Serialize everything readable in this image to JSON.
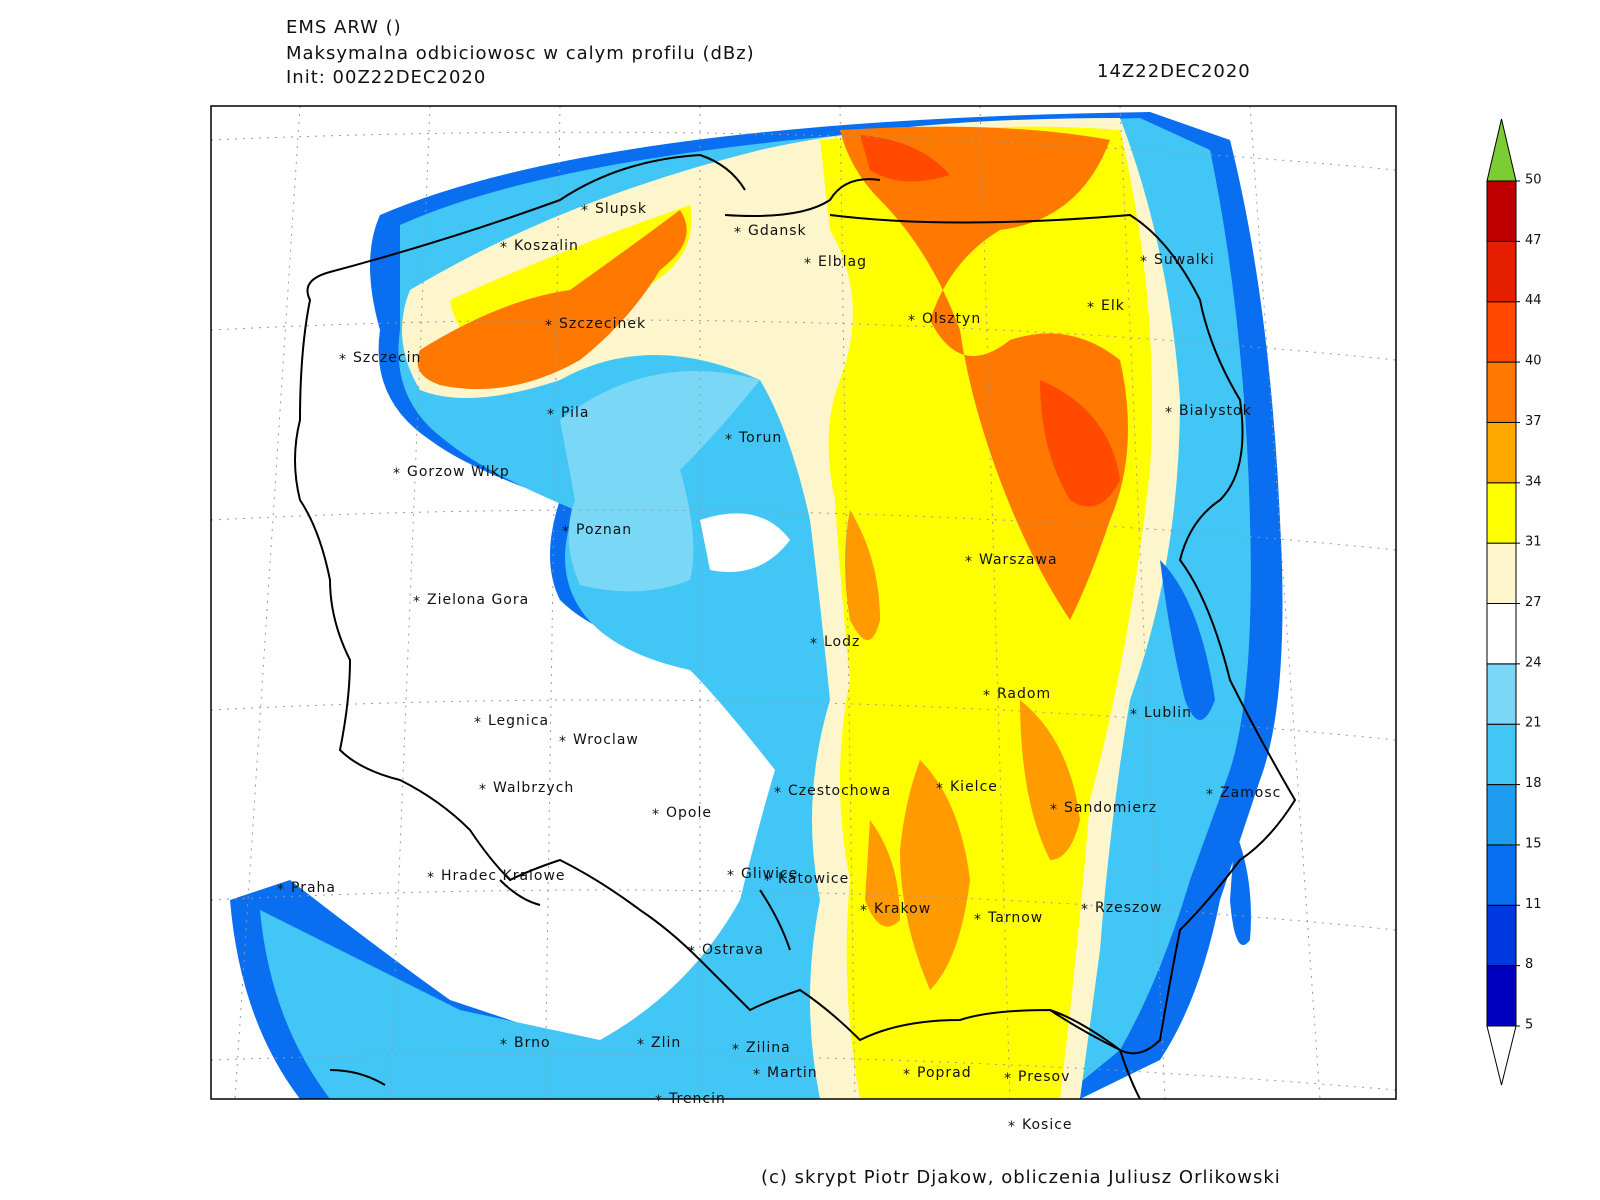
{
  "header": {
    "model": "EMS ARW ()",
    "variable": "Maksymalna odbiciowosc w calym profilu (dBz)",
    "init": "Init: 00Z22DEC2020",
    "valid_time": "14Z22DEC2020"
  },
  "cities": [
    "Slupsk",
    "Koszalin",
    "Gdansk",
    "Elblag",
    "Suwalki",
    "Elk",
    "Olsztyn",
    "Szczecinek",
    "Szczecin",
    "Bialystok",
    "Pila",
    "Torun",
    "Gorzow Wlkp",
    "Poznan",
    "Warszawa",
    "Zielona Gora",
    "Lodz",
    "Radom",
    "Lublin",
    "Legnica",
    "Wroclaw",
    "Walbrzych",
    "Czestochowa",
    "Kielce",
    "Zamosc",
    "Opole",
    "Sandomierz",
    "Praha",
    "Hradec Kralowe",
    "Gliwice",
    "Katowice",
    "Krakow",
    "Tarnow",
    "Rzeszow",
    "Ostrava",
    "Brno",
    "Zlin",
    "Zilina",
    "Martin",
    "Poprad",
    "Presov",
    "Trencin",
    "Kosice"
  ],
  "colorbar": {
    "levels": [
      5,
      8,
      11,
      15,
      18,
      21,
      24,
      27,
      31,
      34,
      37,
      40,
      44,
      47,
      50
    ],
    "colors": [
      "#0000c0",
      "#0038e0",
      "#0a6ef0",
      "#1e9cf0",
      "#42c6f6",
      "#7ad8f6",
      "#ffffff",
      "#fdf6cc",
      "#ffff00",
      "#ffa800",
      "#ff7800",
      "#ff4a00",
      "#e61e00",
      "#c00000"
    ],
    "over_color": "#7ccc34",
    "under_color": "#ffffff"
  },
  "credit": "(c) skrypt Piotr Djakow, obliczenia Juliusz Orlikowski"
}
